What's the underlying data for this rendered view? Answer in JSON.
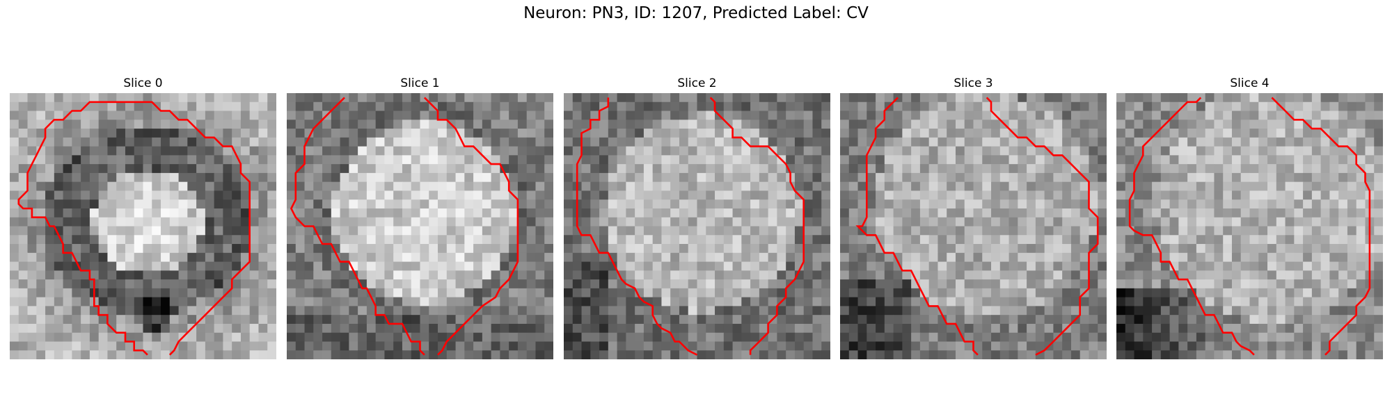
{
  "figure": {
    "title": "Neuron: PN3, ID: 1207, Predicted Label: CV",
    "contour_color": "#ff0000"
  },
  "panels": [
    {
      "title": "Slice 0",
      "pattern": "dark-ring-bright-center"
    },
    {
      "title": "Slice 1",
      "pattern": "bright-body"
    },
    {
      "title": "Slice 2",
      "pattern": "bright-body-dark-edges"
    },
    {
      "title": "Slice 3",
      "pattern": "diffuse-bright"
    },
    {
      "title": "Slice 4",
      "pattern": "diffuse-bright-lower-left-dark"
    }
  ]
}
